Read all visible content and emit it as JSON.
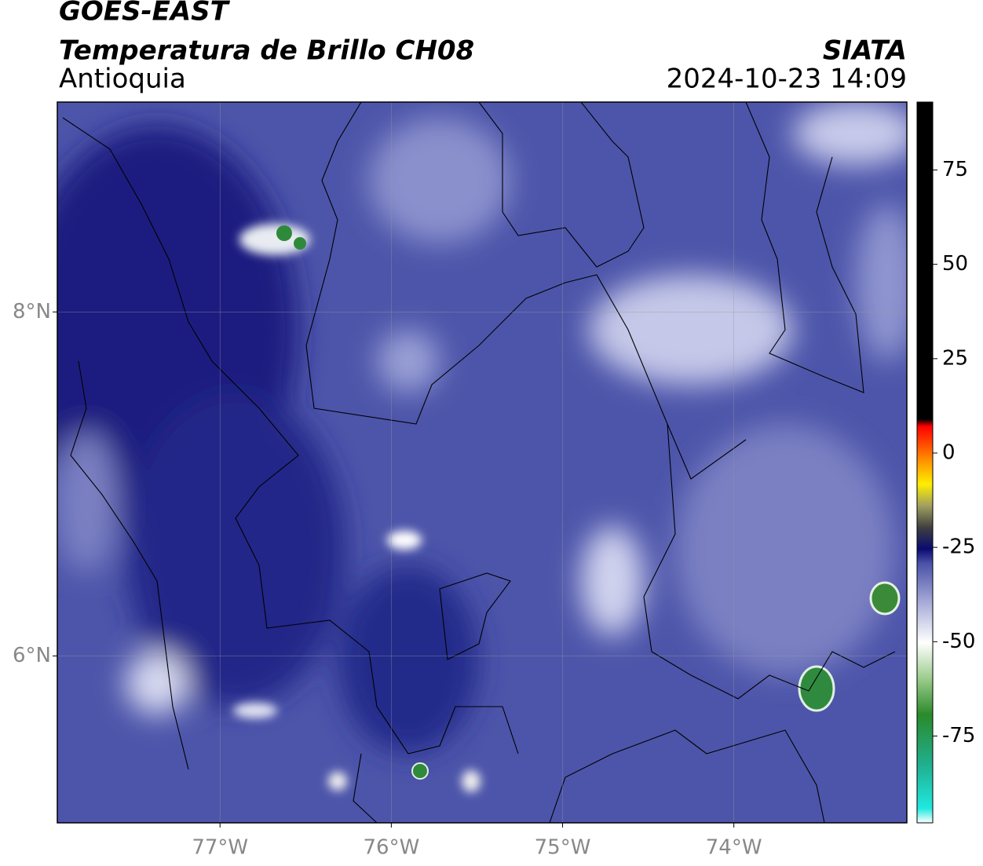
{
  "header": {
    "title": "GOES-EAST",
    "subtitle": "Temperatura de Brillo CH08",
    "region": "Antioquia",
    "source": "SIATA",
    "datetime": "2024-10-23 14:09"
  },
  "map": {
    "xlim": [
      -77.95,
      -72.99
    ],
    "ylim": [
      5.03,
      9.22
    ],
    "xticks": [
      {
        "value": -77,
        "label": "77°W"
      },
      {
        "value": -76,
        "label": "76°W"
      },
      {
        "value": -75,
        "label": "75°W"
      },
      {
        "value": -74,
        "label": "74°W"
      }
    ],
    "yticks": [
      {
        "value": 8,
        "label": "8°N"
      },
      {
        "value": 6,
        "label": "6°N"
      }
    ],
    "grid": true
  },
  "colorbar": {
    "lim": [
      -98,
      93
    ],
    "ticks": [
      75,
      50,
      25,
      0,
      -25,
      -50,
      -75
    ]
  }
}
